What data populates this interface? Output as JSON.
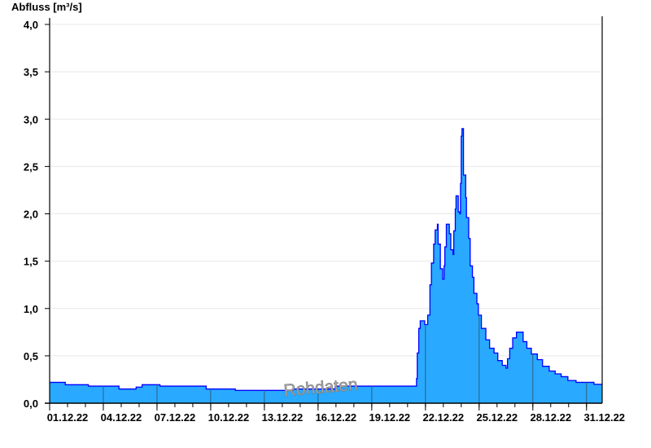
{
  "chart_data": {
    "type": "area",
    "ylabel": "Abfluss [m³/s]",
    "ylim": [
      0,
      4.0
    ],
    "yticks": [
      "0,0",
      "0,5",
      "1,0",
      "1,5",
      "2,0",
      "2,5",
      "3,0",
      "3,5",
      "4,0"
    ],
    "xlim": [
      "01.12.22 00:00",
      "31.12.22 21:00"
    ],
    "xticks": [
      "01.12.22",
      "04.12.22",
      "07.12.22",
      "10.12.22",
      "13.12.22",
      "16.12.22",
      "19.12.22",
      "22.12.22",
      "25.12.22",
      "28.12.22",
      "31.12.22"
    ],
    "grid": "horizontal",
    "step": true,
    "fill_color": "#29a9ff",
    "line_color": "#0000ff",
    "watermark": "Rohdaten",
    "series": [
      {
        "points": [
          [
            "01.12.22 00:00",
            0.22
          ],
          [
            "01.12.22 21:00",
            0.195
          ],
          [
            "03.12.22 04:00",
            0.18
          ],
          [
            "04.12.22 21:00",
            0.15
          ],
          [
            "05.12.22 20:00",
            0.17
          ],
          [
            "06.12.22 04:00",
            0.195
          ],
          [
            "07.12.22 04:00",
            0.18
          ],
          [
            "09.12.22 18:00",
            0.15
          ],
          [
            "11.12.22 09:00",
            0.135
          ],
          [
            "14.12.22 14:00",
            0.15
          ],
          [
            "16.12.22 23:00",
            0.18
          ],
          [
            "21.12.22 10:00",
            0.18
          ],
          [
            "21.12.22 12:00",
            0.26
          ],
          [
            "21.12.22 13:00",
            0.53
          ],
          [
            "21.12.22 15:00",
            0.79
          ],
          [
            "21.12.22 17:00",
            0.87
          ],
          [
            "21.12.22 23:00",
            0.83
          ],
          [
            "22.12.22 03:00",
            0.93
          ],
          [
            "22.12.22 06:00",
            1.25
          ],
          [
            "22.12.22 08:00",
            1.48
          ],
          [
            "22.12.22 11:00",
            1.68
          ],
          [
            "22.12.22 13:00",
            1.83
          ],
          [
            "22.12.22 16:00",
            1.89
          ],
          [
            "22.12.22 17:00",
            1.68
          ],
          [
            "22.12.22 20:00",
            1.42
          ],
          [
            "22.12.22 23:00",
            1.31
          ],
          [
            "23.12.22 01:00",
            1.45
          ],
          [
            "23.12.22 02:00",
            1.65
          ],
          [
            "23.12.22 04:00",
            1.89
          ],
          [
            "23.12.22 08:00",
            1.79
          ],
          [
            "23.12.22 10:00",
            1.62
          ],
          [
            "23.12.22 13:00",
            1.57
          ],
          [
            "23.12.22 14:00",
            1.82
          ],
          [
            "23.12.22 16:00",
            2.05
          ],
          [
            "23.12.22 17:00",
            2.19
          ],
          [
            "23.12.22 20:00",
            2.02
          ],
          [
            "23.12.22 22:00",
            2.0
          ],
          [
            "23.12.22 23:00",
            2.32
          ],
          [
            "24.12.22 00:00",
            2.82
          ],
          [
            "24.12.22 01:00",
            2.9
          ],
          [
            "24.12.22 03:00",
            2.41
          ],
          [
            "24.12.22 06:00",
            2.17
          ],
          [
            "24.12.22 07:00",
            1.96
          ],
          [
            "24.12.22 10:00",
            1.74
          ],
          [
            "24.12.22 12:00",
            1.45
          ],
          [
            "24.12.22 15:00",
            1.33
          ],
          [
            "24.12.22 17:00",
            1.16
          ],
          [
            "24.12.22 21:00",
            1.05
          ],
          [
            "24.12.22 23:00",
            0.93
          ],
          [
            "25.12.22 03:00",
            0.79
          ],
          [
            "25.12.22 09:00",
            0.67
          ],
          [
            "25.12.22 14:00",
            0.58
          ],
          [
            "25.12.22 20:00",
            0.53
          ],
          [
            "26.12.22 01:00",
            0.45
          ],
          [
            "26.12.22 07:00",
            0.4
          ],
          [
            "26.12.22 12:00",
            0.37
          ],
          [
            "26.12.22 14:00",
            0.47
          ],
          [
            "26.12.22 17:00",
            0.58
          ],
          [
            "26.12.22 21:00",
            0.69
          ],
          [
            "27.12.22 02:00",
            0.75
          ],
          [
            "27.12.22 07:00",
            0.75
          ],
          [
            "27.12.22 11:00",
            0.65
          ],
          [
            "27.12.22 16:00",
            0.58
          ],
          [
            "27.12.22 22:00",
            0.52
          ],
          [
            "28.12.22 06:00",
            0.46
          ],
          [
            "28.12.22 13:00",
            0.39
          ],
          [
            "28.12.22 22:00",
            0.34
          ],
          [
            "29.12.22 06:00",
            0.31
          ],
          [
            "29.12.22 14:00",
            0.28
          ],
          [
            "29.12.22 23:00",
            0.24
          ],
          [
            "30.12.22 10:00",
            0.22
          ],
          [
            "31.12.22 10:00",
            0.2
          ]
        ]
      }
    ]
  }
}
